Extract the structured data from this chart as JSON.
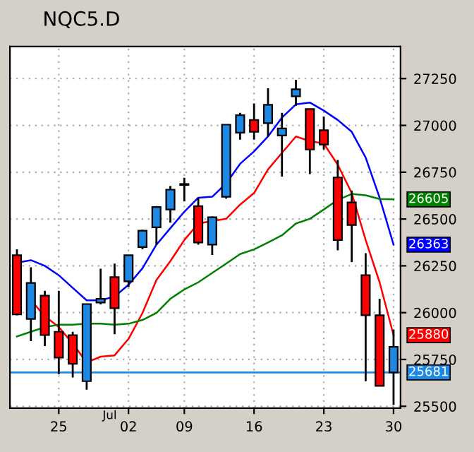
{
  "chart_data": {
    "type": "candlestick",
    "title": "NQC5.D",
    "categories": [
      null,
      null,
      null,
      "25",
      null,
      null,
      null,
      null,
      "02",
      null,
      null,
      null,
      "09",
      null,
      null,
      null,
      null,
      "16",
      null,
      null,
      null,
      null,
      "23",
      null,
      null,
      null,
      null,
      "30"
    ],
    "annotations": [
      "Jul"
    ],
    "ohlc": [
      [
        26307,
        26338,
        25986,
        25991
      ],
      [
        25966,
        26242,
        25848,
        26159
      ],
      [
        26091,
        26117,
        25822,
        25880
      ],
      [
        25898,
        26117,
        25672,
        25760
      ],
      [
        25880,
        25898,
        25654,
        25727
      ],
      [
        25634,
        26046,
        25589,
        26046
      ],
      [
        26054,
        26235,
        26044,
        26074
      ],
      [
        26190,
        26262,
        25885,
        26024
      ],
      [
        26167,
        26307,
        26137,
        26307
      ],
      [
        26350,
        26443,
        26338,
        26438
      ],
      [
        26456,
        26569,
        26363,
        26564
      ],
      [
        26551,
        26677,
        26481,
        26657
      ],
      [
        26682,
        26720,
        26594,
        26687
      ],
      [
        26569,
        26614,
        26363,
        26375
      ],
      [
        26363,
        26514,
        26308,
        26509
      ],
      [
        26619,
        27004,
        26609,
        27004
      ],
      [
        26961,
        27067,
        26924,
        27054
      ],
      [
        27029,
        27117,
        26924,
        26966
      ],
      [
        27012,
        27198,
        26941,
        27110
      ],
      [
        26946,
        27067,
        26727,
        26984
      ],
      [
        27155,
        27243,
        27105,
        27193
      ],
      [
        27087,
        27087,
        26740,
        26871
      ],
      [
        26974,
        27047,
        26871,
        26898
      ],
      [
        26722,
        26815,
        26333,
        26388
      ],
      [
        26589,
        26652,
        26270,
        26468
      ],
      [
        26200,
        26318,
        25634,
        25986
      ],
      [
        25986,
        26074,
        25609,
        25609
      ],
      [
        25681,
        25910,
        25508,
        25817
      ]
    ],
    "colors": [
      "#ff0000",
      "#1e88e5",
      "#ff0000",
      "#ff0000",
      "#ff0000",
      "#1e88e5",
      "#1e88e5",
      "#ff0000",
      "#1e88e5",
      "#1e88e5",
      "#1e88e5",
      "#1e88e5",
      "#1e88e5",
      "#ff0000",
      "#1e88e5",
      "#1e88e5",
      "#1e88e5",
      "#ff0000",
      "#1e88e5",
      "#1e88e5",
      "#1e88e5",
      "#ff0000",
      "#ff0000",
      "#ff0000",
      "#ff0000",
      "#ff0000",
      "#ff0000",
      "#1e88e5"
    ],
    "series": [
      {
        "type": "line",
        "color": "#0000ff",
        "values": [
          26267,
          26280,
          26250,
          26200,
          26132,
          26066,
          26066,
          26086,
          26149,
          26237,
          26363,
          26451,
          26539,
          26614,
          26619,
          26690,
          26795,
          26861,
          26941,
          27042,
          27112,
          27122,
          27079,
          27029,
          26966,
          26828,
          26614,
          26363
        ],
        "value_labels": [
          null,
          null,
          null,
          null,
          null,
          null,
          null,
          null,
          null,
          null,
          null,
          null,
          null,
          null,
          null,
          null,
          null,
          null,
          null,
          null,
          null,
          null,
          null,
          null,
          null,
          null,
          null,
          "26363"
        ]
      },
      {
        "type": "line",
        "color": "#ff0000",
        "values": [
          null,
          26066,
          25981,
          25923,
          25835,
          25734,
          25765,
          25772,
          25860,
          25998,
          26174,
          26275,
          26388,
          26476,
          26489,
          26501,
          26577,
          26639,
          26765,
          26853,
          26941,
          26916,
          26903,
          26790,
          26639,
          26388,
          26162,
          25880
        ],
        "value_labels": [
          null,
          null,
          null,
          null,
          null,
          null,
          null,
          null,
          null,
          null,
          null,
          null,
          null,
          null,
          null,
          null,
          null,
          null,
          null,
          null,
          null,
          null,
          null,
          null,
          null,
          null,
          null,
          "25880"
        ]
      },
      {
        "type": "line",
        "color": "#008000",
        "values": [
          25873,
          25898,
          25923,
          25936,
          25936,
          25941,
          25941,
          25936,
          25941,
          25961,
          25998,
          26074,
          26124,
          26162,
          26212,
          26262,
          26313,
          26338,
          26375,
          26413,
          26476,
          26501,
          26551,
          26602,
          26634,
          26627,
          26607,
          26605
        ],
        "value_labels": [
          null,
          null,
          null,
          null,
          null,
          null,
          null,
          null,
          null,
          null,
          null,
          null,
          null,
          null,
          null,
          null,
          null,
          null,
          null,
          null,
          null,
          null,
          null,
          null,
          null,
          null,
          null,
          "26605"
        ]
      }
    ],
    "ref_lines": [
      {
        "axis": "y",
        "value": 25681,
        "label": "25681",
        "color": "#1e88e5"
      }
    ],
    "ylim": [
      25490,
      27421
    ],
    "yticks": [
      25500,
      25750,
      26000,
      26250,
      26500,
      26750,
      27000,
      27250
    ],
    "grid": true
  }
}
